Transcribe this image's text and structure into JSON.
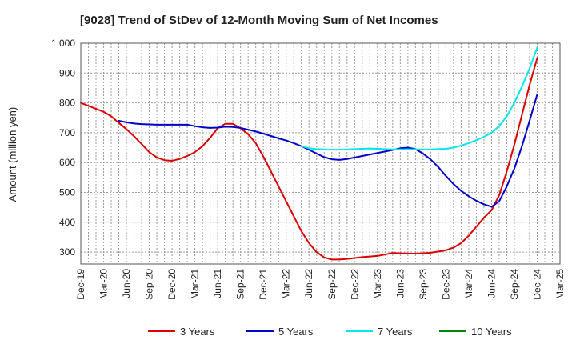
{
  "chart_data": {
    "type": "line",
    "title": "[9028]  Trend of StDev of 12-Month Moving Sum of Net Incomes",
    "xlabel": "",
    "ylabel": "Amount (million yen)",
    "ylim": [
      260,
      1000
    ],
    "yticks": [
      "300",
      "400",
      "500",
      "600",
      "700",
      "800",
      "900",
      "1,000"
    ],
    "ytick_values": [
      300,
      400,
      500,
      600,
      700,
      800,
      900,
      1000
    ],
    "xlim": [
      "2019-12",
      "2025-03"
    ],
    "xticks": [
      "Dec-19",
      "Mar-20",
      "Jun-20",
      "Sep-20",
      "Dec-20",
      "Mar-21",
      "Jun-21",
      "Sep-21",
      "Dec-21",
      "Mar-22",
      "Jun-22",
      "Sep-22",
      "Dec-22",
      "Mar-23",
      "Jun-23",
      "Sep-23",
      "Dec-23",
      "Mar-24",
      "Jun-24",
      "Sep-24",
      "Dec-24",
      "Mar-25"
    ],
    "grid": true,
    "legend_position": "bottom",
    "colors": {
      "3 Years": "#dd0000",
      "5 Years": "#0000cc",
      "7 Years": "#00e5ee",
      "10 Years": "#008800"
    },
    "series": [
      {
        "name": "3 Years",
        "color": "#dd0000",
        "points": [
          [
            "2019-12",
            800
          ],
          [
            "2020-01",
            790
          ],
          [
            "2020-02",
            780
          ],
          [
            "2020-03",
            770
          ],
          [
            "2020-04",
            755
          ],
          [
            "2020-05",
            733
          ],
          [
            "2020-06",
            712
          ],
          [
            "2020-07",
            688
          ],
          [
            "2020-08",
            662
          ],
          [
            "2020-09",
            635
          ],
          [
            "2020-10",
            617
          ],
          [
            "2020-11",
            608
          ],
          [
            "2020-12",
            606
          ],
          [
            "2021-01",
            612
          ],
          [
            "2021-02",
            622
          ],
          [
            "2021-03",
            635
          ],
          [
            "2021-04",
            655
          ],
          [
            "2021-05",
            683
          ],
          [
            "2021-06",
            715
          ],
          [
            "2021-07",
            730
          ],
          [
            "2021-08",
            730
          ],
          [
            "2021-09",
            715
          ],
          [
            "2021-10",
            695
          ],
          [
            "2021-11",
            665
          ],
          [
            "2021-12",
            620
          ],
          [
            "2022-01",
            570
          ],
          [
            "2022-02",
            520
          ],
          [
            "2022-03",
            470
          ],
          [
            "2022-04",
            420
          ],
          [
            "2022-05",
            370
          ],
          [
            "2022-06",
            330
          ],
          [
            "2022-07",
            300
          ],
          [
            "2022-08",
            282
          ],
          [
            "2022-09",
            275
          ],
          [
            "2022-10",
            275
          ],
          [
            "2022-11",
            277
          ],
          [
            "2022-12",
            280
          ],
          [
            "2023-01",
            283
          ],
          [
            "2023-02",
            285
          ],
          [
            "2023-03",
            287
          ],
          [
            "2023-04",
            292
          ],
          [
            "2023-05",
            297
          ],
          [
            "2023-06",
            296
          ],
          [
            "2023-07",
            295
          ],
          [
            "2023-08",
            295
          ],
          [
            "2023-09",
            296
          ],
          [
            "2023-10",
            298
          ],
          [
            "2023-11",
            302
          ],
          [
            "2023-12",
            306
          ],
          [
            "2024-01",
            315
          ],
          [
            "2024-02",
            330
          ],
          [
            "2024-03",
            355
          ],
          [
            "2024-04",
            385
          ],
          [
            "2024-05",
            415
          ],
          [
            "2024-06",
            440
          ],
          [
            "2024-07",
            490
          ],
          [
            "2024-08",
            570
          ],
          [
            "2024-09",
            660
          ],
          [
            "2024-10",
            760
          ],
          [
            "2024-11",
            860
          ],
          [
            "2024-12",
            950
          ]
        ]
      },
      {
        "name": "5 Years",
        "color": "#0000cc",
        "points": [
          [
            "2020-05",
            740
          ],
          [
            "2020-06",
            735
          ],
          [
            "2020-07",
            731
          ],
          [
            "2020-08",
            729
          ],
          [
            "2020-09",
            728
          ],
          [
            "2020-10",
            727
          ],
          [
            "2020-11",
            727
          ],
          [
            "2020-12",
            727
          ],
          [
            "2021-01",
            727
          ],
          [
            "2021-02",
            727
          ],
          [
            "2021-03",
            722
          ],
          [
            "2021-04",
            718
          ],
          [
            "2021-05",
            716
          ],
          [
            "2021-06",
            717
          ],
          [
            "2021-07",
            720
          ],
          [
            "2021-08",
            719
          ],
          [
            "2021-09",
            716
          ],
          [
            "2021-10",
            710
          ],
          [
            "2021-11",
            704
          ],
          [
            "2021-12",
            697
          ],
          [
            "2022-01",
            689
          ],
          [
            "2022-02",
            681
          ],
          [
            "2022-03",
            674
          ],
          [
            "2022-04",
            665
          ],
          [
            "2022-05",
            655
          ],
          [
            "2022-06",
            643
          ],
          [
            "2022-07",
            630
          ],
          [
            "2022-08",
            618
          ],
          [
            "2022-09",
            611
          ],
          [
            "2022-10",
            609
          ],
          [
            "2022-11",
            612
          ],
          [
            "2022-12",
            617
          ],
          [
            "2023-01",
            622
          ],
          [
            "2023-02",
            627
          ],
          [
            "2023-03",
            632
          ],
          [
            "2023-04",
            637
          ],
          [
            "2023-05",
            642
          ],
          [
            "2023-06",
            648
          ],
          [
            "2023-07",
            650
          ],
          [
            "2023-08",
            645
          ],
          [
            "2023-09",
            630
          ],
          [
            "2023-10",
            610
          ],
          [
            "2023-11",
            585
          ],
          [
            "2023-12",
            555
          ],
          [
            "2024-01",
            528
          ],
          [
            "2024-02",
            505
          ],
          [
            "2024-03",
            487
          ],
          [
            "2024-04",
            472
          ],
          [
            "2024-05",
            460
          ],
          [
            "2024-06",
            452
          ],
          [
            "2024-07",
            470
          ],
          [
            "2024-08",
            520
          ],
          [
            "2024-09",
            580
          ],
          [
            "2024-10",
            655
          ],
          [
            "2024-11",
            740
          ],
          [
            "2024-12",
            828
          ]
        ]
      },
      {
        "name": "7 Years",
        "color": "#00e5ee",
        "points": [
          [
            "2022-05",
            655
          ],
          [
            "2022-06",
            648
          ],
          [
            "2022-07",
            645
          ],
          [
            "2022-08",
            644
          ],
          [
            "2022-09",
            643
          ],
          [
            "2022-10",
            643
          ],
          [
            "2022-11",
            644
          ],
          [
            "2022-12",
            645
          ],
          [
            "2023-01",
            646
          ],
          [
            "2023-02",
            647
          ],
          [
            "2023-03",
            646
          ],
          [
            "2023-04",
            645
          ],
          [
            "2023-05",
            644
          ],
          [
            "2023-06",
            644
          ],
          [
            "2023-07",
            644
          ],
          [
            "2023-08",
            644
          ],
          [
            "2023-09",
            644
          ],
          [
            "2023-10",
            644
          ],
          [
            "2023-11",
            645
          ],
          [
            "2023-12",
            646
          ],
          [
            "2024-01",
            650
          ],
          [
            "2024-02",
            657
          ],
          [
            "2024-03",
            665
          ],
          [
            "2024-04",
            675
          ],
          [
            "2024-05",
            686
          ],
          [
            "2024-06",
            700
          ],
          [
            "2024-07",
            722
          ],
          [
            "2024-08",
            755
          ],
          [
            "2024-09",
            800
          ],
          [
            "2024-10",
            855
          ],
          [
            "2024-11",
            915
          ],
          [
            "2024-12",
            985
          ]
        ]
      },
      {
        "name": "10 Years",
        "color": "#008800",
        "points": []
      }
    ]
  }
}
